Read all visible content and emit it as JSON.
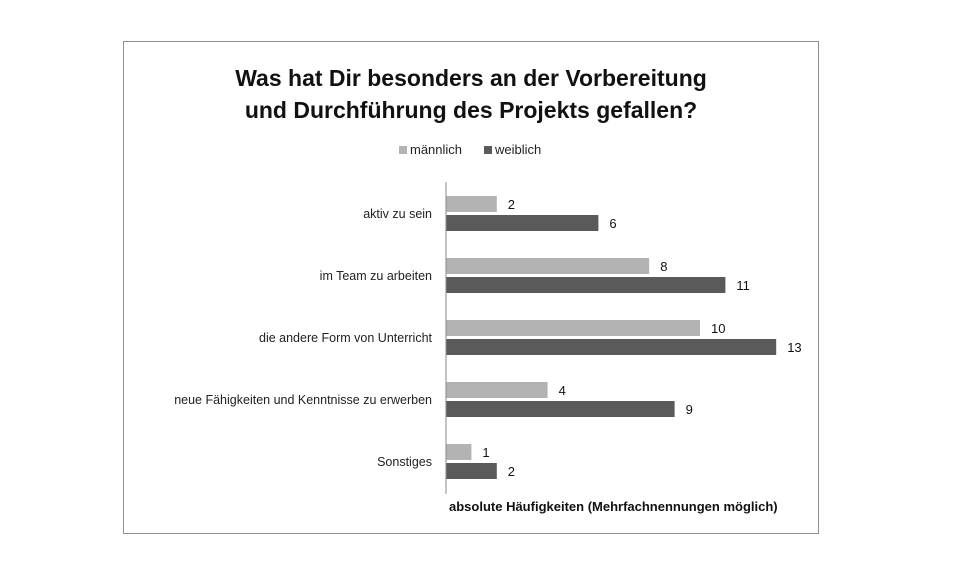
{
  "chart_data": {
    "type": "bar",
    "orientation": "horizontal",
    "title_lines": [
      "Was hat Dir besonders an der Vorbereitung",
      "und Durchführung des Projekts gefallen?"
    ],
    "categories": [
      "aktiv zu sein",
      "im Team zu arbeiten",
      "die andere Form von Unterricht",
      "neue Fähigkeiten und Kenntnisse zu erwerben",
      "Sonstiges"
    ],
    "series": [
      {
        "name": "männlich",
        "color": "#b3b3b3",
        "values": [
          2,
          8,
          10,
          4,
          1
        ]
      },
      {
        "name": "weiblich",
        "color": "#5a5a5a",
        "values": [
          6,
          11,
          13,
          9,
          2
        ]
      }
    ],
    "xlabel": "absolute Häufigkeiten (Mehrfachnennungen möglich)",
    "ylabel": "",
    "xlim": [
      0,
      13
    ],
    "grid": false,
    "legend_position": "top-center"
  }
}
